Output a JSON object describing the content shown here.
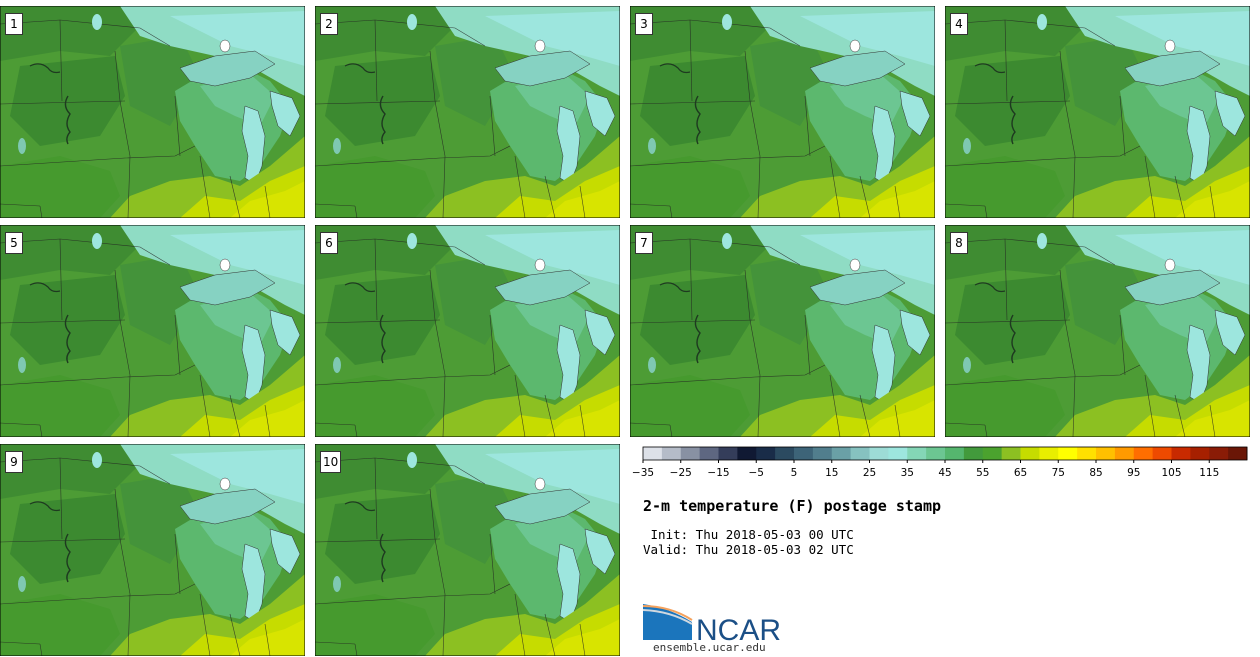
{
  "panels": [
    {
      "label": "1"
    },
    {
      "label": "2"
    },
    {
      "label": "3"
    },
    {
      "label": "4"
    },
    {
      "label": "5"
    },
    {
      "label": "6"
    },
    {
      "label": "7"
    },
    {
      "label": "8"
    },
    {
      "label": "9"
    },
    {
      "label": "10"
    }
  ],
  "colorbar": {
    "tick_labels": [
      "−35",
      "−25",
      "−15",
      "−5",
      "5",
      "15",
      "25",
      "35",
      "45",
      "55",
      "65",
      "75",
      "85",
      "95",
      "105",
      "115"
    ],
    "colors": [
      "#dde1e8",
      "#b5bcc8",
      "#8891a3",
      "#5e6781",
      "#343d5a",
      "#101933",
      "#192c48",
      "#2b4a60",
      "#3d6478",
      "#517e8d",
      "#6aa0a6",
      "#86c2c0",
      "#9ddcd6",
      "#9de6de",
      "#84d6b6",
      "#6cc692",
      "#55b66e",
      "#429a3c",
      "#4ba22e",
      "#8cc022",
      "#c6dc00",
      "#e8ee00",
      "#ffff00",
      "#ffe000",
      "#ffc000",
      "#ff9a00",
      "#ff6e00",
      "#ee4a00",
      "#c82a00",
      "#a62000",
      "#8a1c06",
      "#6a1606"
    ]
  },
  "title": "2-m temperature (F) postage stamp",
  "init_text": " Init: Thu 2018-05-03 00 UTC",
  "valid_text": "Valid: Thu 2018-05-03 02 UTC",
  "logo_text": "NCAR",
  "url": "ensemble.ucar.edu"
}
